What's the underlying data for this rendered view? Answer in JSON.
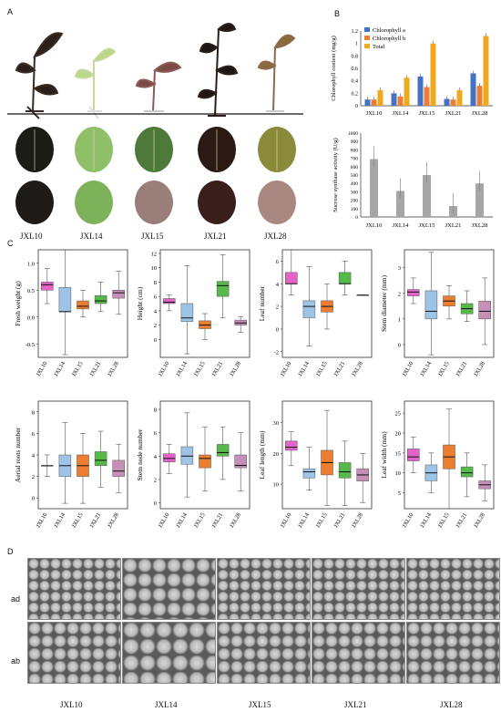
{
  "panel_labels": {
    "a": "A",
    "b": "B",
    "c": "C",
    "d": "D"
  },
  "cultivars": [
    "JXL10",
    "JXL14",
    "JXL15",
    "JXL21",
    "JXL28"
  ],
  "colors": {
    "chl_a": "#4472c4",
    "chl_b": "#ed7d31",
    "total": "#f0a81c",
    "sucrose": "#a6a6a6",
    "JXL10": "#e264c9",
    "JXL14": "#9dc3e6",
    "JXL15": "#ed7d31",
    "JXL21": "#56b94a",
    "JXL28": "#c58fb7"
  },
  "sem": {
    "row_ad": "ad",
    "row_ab": "ab"
  },
  "chart_data": [
    {
      "type": "bar",
      "ylabel": "Chlorophyll content (mg/g)",
      "categories": [
        "JXL10",
        "JXL14",
        "JXL15",
        "JXL21",
        "JXL28"
      ],
      "ylim": [
        0,
        1.2
      ],
      "yticks": [
        "0",
        "0.2",
        "0.4",
        "0.6",
        "0.8",
        "1",
        "1.2"
      ],
      "series": [
        {
          "name": "Chlorophyll a",
          "values": [
            0.1,
            0.2,
            0.47,
            0.11,
            0.52
          ]
        },
        {
          "name": "Chlorophyll b",
          "values": [
            0.1,
            0.15,
            0.3,
            0.1,
            0.32
          ]
        },
        {
          "name": "Total",
          "values": [
            0.25,
            0.45,
            1.0,
            0.25,
            1.12
          ]
        }
      ],
      "legend": "top-left"
    },
    {
      "type": "bar",
      "ylabel": "Sucrose synthase activity (U/g)",
      "categories": [
        "JXL10",
        "JXL14",
        "JXL15",
        "JXL21",
        "JXL28"
      ],
      "ylim": [
        0,
        1000
      ],
      "yticks": [
        "0",
        "100",
        "200",
        "300",
        "400",
        "500",
        "600",
        "700",
        "800",
        "900",
        "1000"
      ],
      "values": [
        690,
        310,
        500,
        130,
        400
      ]
    },
    {
      "type": "box",
      "ylabel": "Fresh weight (g)",
      "yticks": [
        "-0.5",
        "0.0",
        "0.5",
        "1.0"
      ],
      "ylim": [
        -0.75,
        1.25
      ],
      "boxes": [
        [
          0.25,
          0.5,
          0.6,
          0.65,
          0.9
        ],
        [
          -0.7,
          0.1,
          0.1,
          0.55,
          1.25
        ],
        [
          0.0,
          0.15,
          0.2,
          0.3,
          0.5
        ],
        [
          0.1,
          0.25,
          0.3,
          0.4,
          0.65
        ],
        [
          0.05,
          0.35,
          0.45,
          0.5,
          0.85
        ]
      ]
    },
    {
      "type": "box",
      "ylabel": "Height (cm)",
      "yticks": [
        "0",
        "2",
        "4",
        "6",
        "8",
        "10",
        "12"
      ],
      "ylim": [
        -2.5,
        12.5
      ],
      "boxes": [
        [
          4,
          5,
          5.2,
          5.7,
          6.2
        ],
        [
          -2,
          2.5,
          3,
          5,
          10.3
        ],
        [
          0,
          1.5,
          2,
          2.6,
          3.6
        ],
        [
          3,
          6,
          7.5,
          8.1,
          11.8
        ],
        [
          1,
          2,
          2.3,
          2.7,
          3.2
        ]
      ]
    },
    {
      "type": "box",
      "ylabel": "Leaf number",
      "yticks": [
        "-2",
        "0",
        "2",
        "4",
        "6"
      ],
      "ylim": [
        -2.5,
        7
      ],
      "boxes": [
        [
          3,
          4,
          4,
          5,
          7
        ],
        [
          -1.5,
          1,
          2,
          2.5,
          5.5
        ],
        [
          0,
          1.5,
          2,
          2.5,
          4
        ],
        [
          3,
          4,
          4,
          5,
          6
        ],
        [
          3,
          3,
          3,
          3,
          3
        ]
      ]
    },
    {
      "type": "box",
      "ylabel": "Stem diameter (mm)",
      "yticks": [
        "0",
        "1",
        "2",
        "3"
      ],
      "ylim": [
        -0.5,
        3.7
      ],
      "boxes": [
        [
          1.6,
          1.9,
          2.05,
          2.15,
          2.6
        ],
        [
          -0.4,
          1.0,
          1.3,
          2.1,
          3.6
        ],
        [
          1.0,
          1.5,
          1.7,
          1.9,
          2.3
        ],
        [
          0.9,
          1.2,
          1.4,
          1.6,
          2.1
        ],
        [
          0,
          1.0,
          1.3,
          1.7,
          2.6
        ]
      ]
    },
    {
      "type": "box",
      "ylabel": "Aerial roots number",
      "yticks": [
        "0",
        "2",
        "4",
        "6",
        "8"
      ],
      "ylim": [
        -1,
        9
      ],
      "boxes": [
        [
          2,
          3,
          3,
          3,
          4
        ],
        [
          -0.5,
          2,
          3,
          4,
          7
        ],
        [
          -0.5,
          2,
          3,
          4,
          6
        ],
        [
          1,
          3,
          3.5,
          4.3,
          6.2
        ],
        [
          0.5,
          2,
          2.5,
          3.5,
          5
        ]
      ]
    },
    {
      "type": "box",
      "ylabel": "Stem node number",
      "yticks": [
        "0",
        "2",
        "4",
        "6",
        "8"
      ],
      "ylim": [
        -0.5,
        8.7
      ],
      "boxes": [
        [
          2.5,
          3.5,
          3.8,
          4.2,
          5
        ],
        [
          0.5,
          3.3,
          4,
          4.8,
          7.7
        ],
        [
          1,
          3,
          3.8,
          4.1,
          6.5
        ],
        [
          2,
          4,
          4.3,
          5,
          6.5
        ],
        [
          1,
          3,
          3.2,
          4.1,
          6
        ]
      ]
    },
    {
      "type": "box",
      "ylabel": "Leaf length (mm)",
      "yticks": [
        "10",
        "20",
        "30"
      ],
      "ylim": [
        2,
        37
      ],
      "boxes": [
        [
          16,
          21,
          22,
          24,
          27
        ],
        [
          8,
          12,
          14,
          15,
          22
        ],
        [
          3,
          13,
          17,
          21,
          34
        ],
        [
          3,
          12,
          14,
          17,
          24
        ],
        [
          4,
          11,
          13,
          15,
          20
        ]
      ]
    },
    {
      "type": "box",
      "ylabel": "Leaf width (mm)",
      "yticks": [
        "5",
        "10",
        "15",
        "20",
        "25"
      ],
      "ylim": [
        1,
        28
      ],
      "boxes": [
        [
          10,
          13,
          14,
          16,
          19
        ],
        [
          5,
          8,
          10,
          12,
          15
        ],
        [
          1,
          11,
          14,
          17,
          26
        ],
        [
          4,
          9,
          10,
          11.5,
          15
        ],
        [
          3,
          6,
          7,
          8,
          12
        ]
      ]
    }
  ]
}
